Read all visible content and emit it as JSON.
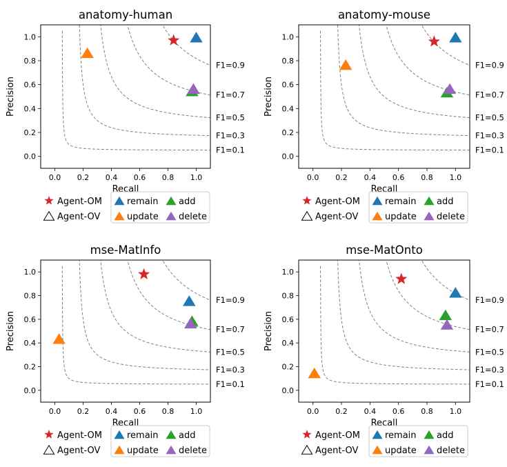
{
  "chart_data": [
    {
      "type": "scatter",
      "title": "anatomy-human",
      "xlabel": "Recall",
      "ylabel": "Precision",
      "xlim": [
        -0.1,
        1.1
      ],
      "ylim": [
        -0.1,
        1.1
      ],
      "xticks": [
        "0.0",
        "0.2",
        "0.4",
        "0.6",
        "0.8",
        "1.0"
      ],
      "yticks": [
        "0.0",
        "0.2",
        "0.4",
        "0.6",
        "0.8",
        "1.0"
      ],
      "iso_f1": [
        {
          "f1": 0.9,
          "label": "F1=0.9"
        },
        {
          "f1": 0.7,
          "label": "F1=0.7"
        },
        {
          "f1": 0.5,
          "label": "F1=0.5"
        },
        {
          "f1": 0.3,
          "label": "F1=0.3"
        },
        {
          "f1": 0.1,
          "label": "F1=0.1"
        }
      ],
      "points": [
        {
          "series": "Agent-OM",
          "marker": "star",
          "color": "#d62728",
          "recall": 0.84,
          "precision": 0.97
        },
        {
          "series": "remain",
          "marker": "triangle",
          "color": "#1f77b4",
          "recall": 1.0,
          "precision": 0.99
        },
        {
          "series": "update",
          "marker": "triangle",
          "color": "#ff7f0e",
          "recall": 0.23,
          "precision": 0.86
        },
        {
          "series": "add",
          "marker": "triangle",
          "color": "#2ca02c",
          "recall": 0.97,
          "precision": 0.54
        },
        {
          "series": "delete",
          "marker": "triangle",
          "color": "#9467bd",
          "recall": 0.98,
          "precision": 0.56
        }
      ]
    },
    {
      "type": "scatter",
      "title": "anatomy-mouse",
      "xlabel": "Recall",
      "ylabel": "Precision",
      "xlim": [
        -0.1,
        1.1
      ],
      "ylim": [
        -0.1,
        1.1
      ],
      "xticks": [
        "0.0",
        "0.2",
        "0.4",
        "0.6",
        "0.8",
        "1.0"
      ],
      "yticks": [
        "0.0",
        "0.2",
        "0.4",
        "0.6",
        "0.8",
        "1.0"
      ],
      "iso_f1": [
        {
          "f1": 0.9,
          "label": "F1=0.9"
        },
        {
          "f1": 0.7,
          "label": "F1=0.7"
        },
        {
          "f1": 0.5,
          "label": "F1=0.5"
        },
        {
          "f1": 0.3,
          "label": "F1=0.3"
        },
        {
          "f1": 0.1,
          "label": "F1=0.1"
        }
      ],
      "points": [
        {
          "series": "Agent-OM",
          "marker": "star",
          "color": "#d62728",
          "recall": 0.85,
          "precision": 0.96
        },
        {
          "series": "remain",
          "marker": "triangle",
          "color": "#1f77b4",
          "recall": 1.0,
          "precision": 0.99
        },
        {
          "series": "update",
          "marker": "triangle",
          "color": "#ff7f0e",
          "recall": 0.23,
          "precision": 0.76
        },
        {
          "series": "add",
          "marker": "triangle",
          "color": "#2ca02c",
          "recall": 0.94,
          "precision": 0.53
        },
        {
          "series": "delete",
          "marker": "triangle",
          "color": "#9467bd",
          "recall": 0.96,
          "precision": 0.56
        }
      ]
    },
    {
      "type": "scatter",
      "title": "mse-MatInfo",
      "xlabel": "Recall",
      "ylabel": "Precision",
      "xlim": [
        -0.1,
        1.1
      ],
      "ylim": [
        -0.1,
        1.1
      ],
      "xticks": [
        "0.0",
        "0.2",
        "0.4",
        "0.6",
        "0.8",
        "1.0"
      ],
      "yticks": [
        "0.0",
        "0.2",
        "0.4",
        "0.6",
        "0.8",
        "1.0"
      ],
      "iso_f1": [
        {
          "f1": 0.9,
          "label": "F1=0.9"
        },
        {
          "f1": 0.7,
          "label": "F1=0.7"
        },
        {
          "f1": 0.5,
          "label": "F1=0.5"
        },
        {
          "f1": 0.3,
          "label": "F1=0.3"
        },
        {
          "f1": 0.1,
          "label": "F1=0.1"
        }
      ],
      "points": [
        {
          "series": "Agent-OM",
          "marker": "star",
          "color": "#d62728",
          "recall": 0.63,
          "precision": 0.98
        },
        {
          "series": "remain",
          "marker": "triangle",
          "color": "#1f77b4",
          "recall": 0.95,
          "precision": 0.75
        },
        {
          "series": "update",
          "marker": "triangle",
          "color": "#ff7f0e",
          "recall": 0.03,
          "precision": 0.43
        },
        {
          "series": "add",
          "marker": "triangle",
          "color": "#2ca02c",
          "recall": 0.97,
          "precision": 0.58
        },
        {
          "series": "delete",
          "marker": "triangle",
          "color": "#9467bd",
          "recall": 0.96,
          "precision": 0.56
        }
      ]
    },
    {
      "type": "scatter",
      "title": "mse-MatOnto",
      "xlabel": "Recall",
      "ylabel": "Precision",
      "xlim": [
        -0.1,
        1.1
      ],
      "ylim": [
        -0.1,
        1.1
      ],
      "xticks": [
        "0.0",
        "0.2",
        "0.4",
        "0.6",
        "0.8",
        "1.0"
      ],
      "yticks": [
        "0.0",
        "0.2",
        "0.4",
        "0.6",
        "0.8",
        "1.0"
      ],
      "iso_f1": [
        {
          "f1": 0.9,
          "label": "F1=0.9"
        },
        {
          "f1": 0.7,
          "label": "F1=0.7"
        },
        {
          "f1": 0.5,
          "label": "F1=0.5"
        },
        {
          "f1": 0.3,
          "label": "F1=0.3"
        },
        {
          "f1": 0.1,
          "label": "F1=0.1"
        }
      ],
      "points": [
        {
          "series": "Agent-OM",
          "marker": "star",
          "color": "#d62728",
          "recall": 0.62,
          "precision": 0.94
        },
        {
          "series": "remain",
          "marker": "triangle",
          "color": "#1f77b4",
          "recall": 1.0,
          "precision": 0.82
        },
        {
          "series": "update",
          "marker": "triangle",
          "color": "#ff7f0e",
          "recall": 0.01,
          "precision": 0.14
        },
        {
          "series": "add",
          "marker": "triangle",
          "color": "#2ca02c",
          "recall": 0.93,
          "precision": 0.63
        },
        {
          "series": "delete",
          "marker": "triangle",
          "color": "#9467bd",
          "recall": 0.94,
          "precision": 0.55
        }
      ]
    }
  ],
  "legend": {
    "agent_om": "Agent-OM",
    "agent_ov": "Agent-OV",
    "remain": "remain",
    "update": "update",
    "add": "add",
    "delete": "delete",
    "colors": {
      "agent_om": "#d62728",
      "remain": "#1f77b4",
      "update": "#ff7f0e",
      "add": "#2ca02c",
      "delete": "#9467bd"
    }
  }
}
